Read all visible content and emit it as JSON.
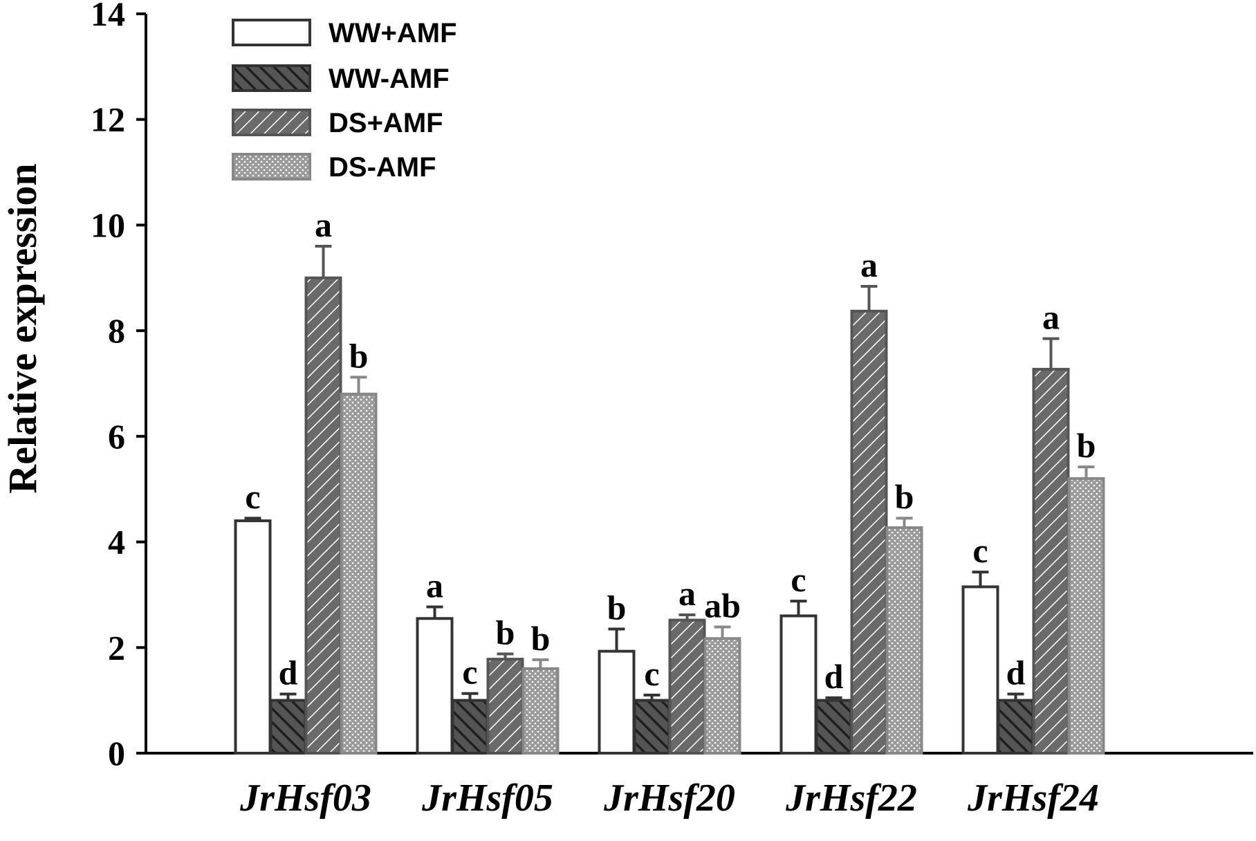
{
  "chart_data": {
    "type": "bar",
    "title": "",
    "xlabel": "",
    "ylabel": "Relative expression",
    "ylim": [
      0,
      14
    ],
    "yticks": [
      "0",
      "2",
      "4",
      "6",
      "8",
      "10",
      "12",
      "14"
    ],
    "grid": false,
    "legend_position": "top-left",
    "categories": [
      "JrHsf03",
      "JrHsf05",
      "JrHsf20",
      "JrHsf22",
      "JrHsf24"
    ],
    "series": [
      {
        "name": "WW+AMF",
        "pattern": "open",
        "color": "#ffffff",
        "stroke": "#333333",
        "values": [
          4.4,
          2.55,
          1.93,
          2.6,
          3.15
        ],
        "errors": [
          0.05,
          0.22,
          0.42,
          0.28,
          0.28
        ],
        "labels": [
          "c",
          "a",
          "b",
          "c",
          "c"
        ]
      },
      {
        "name": "WW-AMF",
        "pattern": "dense-hatch",
        "color": "#404040",
        "stroke": "#333333",
        "values": [
          1.0,
          1.0,
          1.0,
          1.0,
          1.0
        ],
        "errors": [
          0.12,
          0.13,
          0.1,
          0.05,
          0.12
        ],
        "labels": [
          "d",
          "c",
          "c",
          "d",
          "d"
        ]
      },
      {
        "name": "DS+AMF",
        "pattern": "back-hatch",
        "color": "#707070",
        "stroke": "#555555",
        "values": [
          9.0,
          1.78,
          2.52,
          8.37,
          7.27
        ],
        "errors": [
          0.6,
          0.1,
          0.1,
          0.47,
          0.58
        ],
        "labels": [
          "a",
          "b",
          "a",
          "a",
          "a"
        ]
      },
      {
        "name": "DS-AMF",
        "pattern": "dots",
        "color": "#999999",
        "stroke": "#888888",
        "values": [
          6.8,
          1.6,
          2.17,
          4.27,
          5.2
        ],
        "errors": [
          0.32,
          0.17,
          0.22,
          0.18,
          0.22
        ],
        "labels": [
          "b",
          "b",
          "ab",
          "b",
          "b"
        ]
      }
    ]
  }
}
